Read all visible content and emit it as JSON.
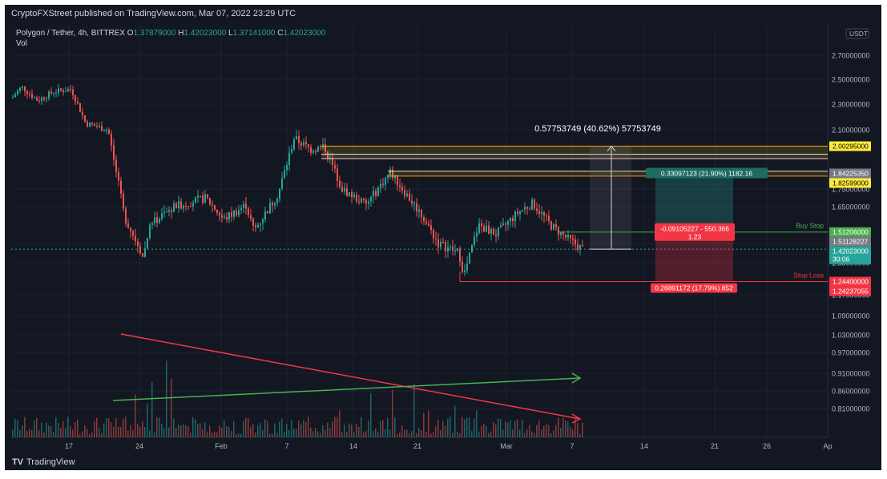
{
  "header": {
    "published": "CryptoFXStreet published on TradingView.com, Mar 07, 2022 23:29 UTC"
  },
  "legend": {
    "symbol": "Polygon / Tether, 4h, BITTREX",
    "open_label": "O",
    "open": "1.37879000",
    "high_label": "H",
    "high": "1.42023000",
    "low_label": "L",
    "low": "1.37141000",
    "close_label": "C",
    "close": "1.42023000",
    "volume_label": "Vol"
  },
  "currency_badge": "USDT",
  "price_axis": [
    "2.70000000",
    "2.50000000",
    "2.30000000",
    "2.10000000",
    "1.75000000",
    "1.65000000",
    "1.45000000",
    "1.35000000",
    "1.17000000",
    "1.09000000",
    "1.03000000",
    "0.97000000",
    "0.91000000",
    "0.86000000",
    "0.81000000"
  ],
  "price_labels": [
    {
      "text": "2.00295000",
      "price": 2.00295,
      "bg": "#ffeb3b",
      "fg": "#000000"
    },
    {
      "text": "1.84225350",
      "price": 1.84225,
      "bg": "#787b86",
      "fg": "#ffffff"
    },
    {
      "text": "1.82599000",
      "price": 1.82599,
      "bg": "#ffeb3b",
      "fg": "#000000"
    },
    {
      "text": "1.51206000",
      "price": 1.51206,
      "bg": "#4caf50",
      "fg": "#ffffff"
    },
    {
      "text": "1.51128227",
      "price": 1.51128,
      "bg": "#787b86",
      "fg": "#ffffff"
    },
    {
      "text": "1.42023000",
      "price": 1.42023,
      "bg": "#26a69a",
      "fg": "#ffffff",
      "sub": "30:06"
    },
    {
      "text": "1.24400000",
      "price": 1.244,
      "bg": "#f23645",
      "fg": "#ffffff"
    },
    {
      "text": "1.24237055",
      "price": 1.24237,
      "bg": "#f23645",
      "fg": "#ffffff"
    }
  ],
  "time_axis": [
    "17",
    "24",
    "Feb",
    "7",
    "14",
    "21",
    "Mar",
    "7",
    "14",
    "21",
    "26",
    "Ap"
  ],
  "annotations": {
    "measure": "0.57753749 (40.62%) 57753749",
    "target": "0.33097123 (21.90%) 1182.16",
    "entry_line1": "-0.09105227 - 550.366",
    "entry_line2": "1.23",
    "stop": "0.26891172 (17.79%) 852",
    "buy_stop": "Buy Stop",
    "stop_loss": "Stop Loss"
  },
  "colors": {
    "bg": "#131722",
    "up": "#26a69a",
    "down": "#ef5350",
    "grid": "#1e222d",
    "text": "#b2b5be",
    "yellow": "#ffeb3b",
    "green": "#4caf50",
    "red": "#f23645"
  },
  "footer": {
    "brand": "TradingView"
  }
}
